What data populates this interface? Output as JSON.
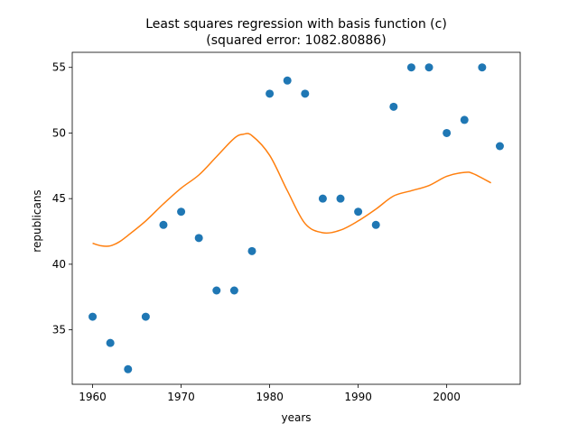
{
  "chart_data": {
    "type": "scatter",
    "title_line1": "Least squares regression with basis function (c)",
    "title_line2": "(squared error: 1082.80886)",
    "xlabel": "years",
    "ylabel": "republicans",
    "xlim": [
      1957.7,
      2008.3
    ],
    "ylim": [
      30.85,
      56.15
    ],
    "xticks": [
      1960,
      1970,
      1980,
      1990,
      2000
    ],
    "yticks": [
      35,
      40,
      45,
      50,
      55
    ],
    "colors": {
      "points": "#1f77b4",
      "fit": "#ff7f0e"
    },
    "points": {
      "x": [
        1960,
        1962,
        1964,
        1966,
        1968,
        1970,
        1972,
        1974,
        1976,
        1978,
        1980,
        1982,
        1984,
        1986,
        1988,
        1990,
        1992,
        1994,
        1996,
        1998,
        2000,
        2002,
        2004,
        2006
      ],
      "y": [
        36,
        34,
        32,
        36,
        43,
        44,
        42,
        38,
        38,
        41,
        53,
        54,
        53,
        45,
        45,
        44,
        43,
        52,
        55,
        55,
        50,
        51,
        55,
        49
      ]
    },
    "fit_line": {
      "x": [
        1960,
        1961,
        1962,
        1963,
        1964,
        1966,
        1968,
        1970,
        1972,
        1974,
        1976,
        1977,
        1978,
        1980,
        1982,
        1984,
        1986,
        1988,
        1990,
        1992,
        1994,
        1996,
        1998,
        2000,
        2002,
        2003,
        2005
      ],
      "y": [
        41.6,
        41.4,
        41.4,
        41.7,
        42.2,
        43.3,
        44.6,
        45.8,
        46.8,
        48.2,
        49.6,
        49.9,
        49.8,
        48.3,
        45.6,
        43.1,
        42.4,
        42.6,
        43.3,
        44.2,
        45.2,
        45.6,
        46.0,
        46.7,
        47.0,
        46.9,
        46.2
      ]
    }
  }
}
